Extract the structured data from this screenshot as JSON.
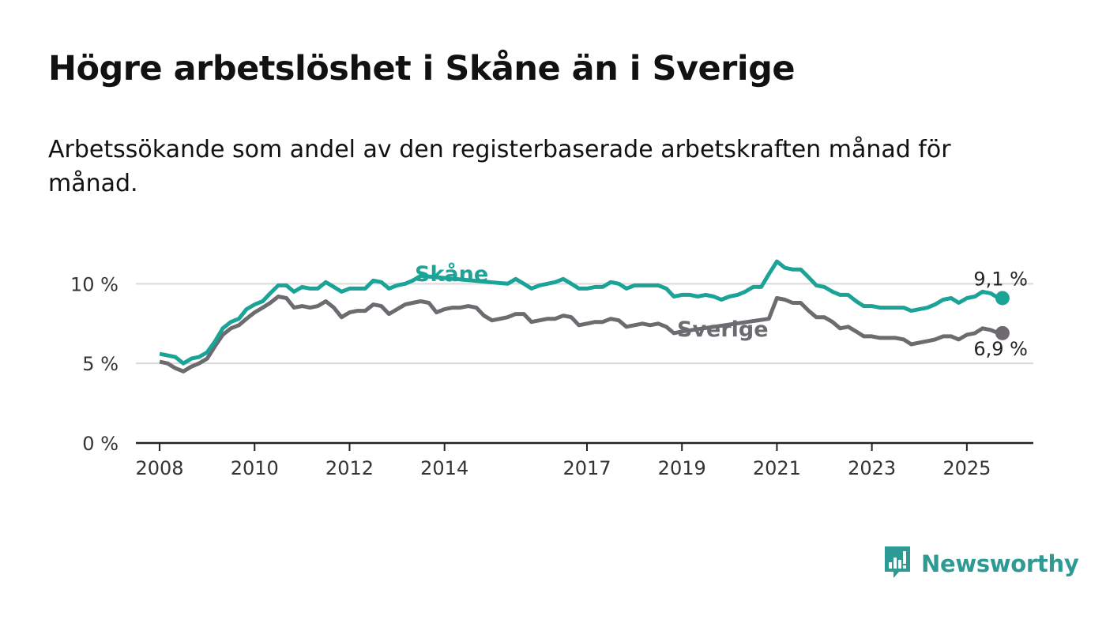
{
  "header": {
    "title": "Högre arbetslöshet i Skåne än i Sverige",
    "subtitle": "Arbetssökande som andel av den registerbaserade arbetskraften månad för månad."
  },
  "brand": {
    "name": "Newsworthy",
    "icon": "newsworthy-bar-chart-icon"
  },
  "colors": {
    "skane": "#1aa396",
    "sverige": "#6d6a70",
    "grid": "#d9d9d9",
    "axis": "#222222"
  },
  "chart_data": {
    "type": "line",
    "x_unit": "year",
    "xlim": [
      2007.5,
      2026.4
    ],
    "ylim": [
      0,
      12
    ],
    "y_ticks": [
      0,
      5,
      10
    ],
    "y_tick_labels": [
      "0 %",
      "5 %",
      "10 %"
    ],
    "x_ticks": [
      2008,
      2010,
      2012,
      2014,
      2017,
      2019,
      2021,
      2023,
      2025
    ],
    "x_tick_labels": [
      "2008",
      "2010",
      "2012",
      "2014",
      "2017",
      "2019",
      "2021",
      "2023",
      "2025"
    ],
    "grid": "horizontal",
    "series": [
      {
        "name": "Skåne",
        "end_label": "9,1 %",
        "points": [
          [
            2008.0,
            5.6
          ],
          [
            2008.33,
            5.4
          ],
          [
            2008.5,
            5.0
          ],
          [
            2008.67,
            5.3
          ],
          [
            2008.83,
            5.4
          ],
          [
            2009.0,
            5.7
          ],
          [
            2009.17,
            6.4
          ],
          [
            2009.33,
            7.2
          ],
          [
            2009.5,
            7.6
          ],
          [
            2009.67,
            7.8
          ],
          [
            2009.83,
            8.4
          ],
          [
            2010.0,
            8.7
          ],
          [
            2010.17,
            8.9
          ],
          [
            2010.33,
            9.4
          ],
          [
            2010.5,
            9.9
          ],
          [
            2010.67,
            9.9
          ],
          [
            2010.83,
            9.5
          ],
          [
            2011.0,
            9.8
          ],
          [
            2011.17,
            9.7
          ],
          [
            2011.33,
            9.7
          ],
          [
            2011.5,
            10.1
          ],
          [
            2011.67,
            9.8
          ],
          [
            2011.83,
            9.5
          ],
          [
            2012.0,
            9.7
          ],
          [
            2012.17,
            9.7
          ],
          [
            2012.33,
            9.7
          ],
          [
            2012.5,
            10.2
          ],
          [
            2012.67,
            10.1
          ],
          [
            2012.83,
            9.7
          ],
          [
            2013.0,
            9.9
          ],
          [
            2013.17,
            10.0
          ],
          [
            2013.33,
            10.2
          ],
          [
            2013.5,
            10.5
          ],
          [
            2015.33,
            10.0
          ],
          [
            2015.5,
            10.3
          ],
          [
            2015.67,
            10.0
          ],
          [
            2015.83,
            9.7
          ],
          [
            2016.0,
            9.9
          ],
          [
            2016.17,
            10.0
          ],
          [
            2016.33,
            10.1
          ],
          [
            2016.5,
            10.3
          ],
          [
            2016.67,
            10.0
          ],
          [
            2016.83,
            9.7
          ],
          [
            2017.0,
            9.7
          ],
          [
            2017.17,
            9.8
          ],
          [
            2017.33,
            9.8
          ],
          [
            2017.5,
            10.1
          ],
          [
            2017.67,
            10.0
          ],
          [
            2017.83,
            9.7
          ],
          [
            2018.0,
            9.9
          ],
          [
            2018.17,
            9.9
          ],
          [
            2018.33,
            9.9
          ],
          [
            2018.5,
            9.9
          ],
          [
            2018.67,
            9.7
          ],
          [
            2018.83,
            9.2
          ],
          [
            2019.0,
            9.3
          ],
          [
            2019.17,
            9.3
          ],
          [
            2019.33,
            9.2
          ],
          [
            2019.5,
            9.3
          ],
          [
            2019.67,
            9.2
          ],
          [
            2019.83,
            9.0
          ],
          [
            2020.0,
            9.2
          ],
          [
            2020.17,
            9.3
          ],
          [
            2020.33,
            9.5
          ],
          [
            2020.5,
            9.8
          ],
          [
            2020.67,
            9.8
          ],
          [
            2020.83,
            10.6
          ],
          [
            2021.0,
            11.4
          ],
          [
            2021.17,
            11.0
          ],
          [
            2021.33,
            10.9
          ],
          [
            2021.5,
            10.9
          ],
          [
            2021.67,
            10.4
          ],
          [
            2021.83,
            9.9
          ],
          [
            2022.0,
            9.8
          ],
          [
            2022.17,
            9.5
          ],
          [
            2022.33,
            9.3
          ],
          [
            2022.5,
            9.3
          ],
          [
            2022.67,
            8.9
          ],
          [
            2022.83,
            8.6
          ],
          [
            2023.0,
            8.6
          ],
          [
            2023.17,
            8.5
          ],
          [
            2023.33,
            8.5
          ],
          [
            2023.5,
            8.5
          ],
          [
            2023.67,
            8.5
          ],
          [
            2023.83,
            8.3
          ],
          [
            2024.0,
            8.4
          ],
          [
            2024.17,
            8.5
          ],
          [
            2024.33,
            8.7
          ],
          [
            2024.5,
            9.0
          ],
          [
            2024.67,
            9.1
          ],
          [
            2024.83,
            8.8
          ],
          [
            2025.0,
            9.1
          ],
          [
            2025.17,
            9.2
          ],
          [
            2025.33,
            9.5
          ],
          [
            2025.5,
            9.4
          ],
          [
            2025.67,
            9.1
          ],
          [
            2025.75,
            9.1
          ]
        ]
      },
      {
        "name": "Sverige",
        "end_label": "6,9 %",
        "points": [
          [
            2008.0,
            5.1
          ],
          [
            2008.17,
            5.0
          ],
          [
            2008.33,
            4.7
          ],
          [
            2008.5,
            4.5
          ],
          [
            2008.67,
            4.8
          ],
          [
            2008.83,
            5.0
          ],
          [
            2009.0,
            5.3
          ],
          [
            2009.17,
            6.1
          ],
          [
            2009.33,
            6.8
          ],
          [
            2009.5,
            7.2
          ],
          [
            2009.67,
            7.4
          ],
          [
            2009.83,
            7.8
          ],
          [
            2010.0,
            8.2
          ],
          [
            2010.17,
            8.5
          ],
          [
            2010.33,
            8.8
          ],
          [
            2010.5,
            9.2
          ],
          [
            2010.67,
            9.1
          ],
          [
            2010.83,
            8.5
          ],
          [
            2011.0,
            8.6
          ],
          [
            2011.17,
            8.5
          ],
          [
            2011.33,
            8.6
          ],
          [
            2011.5,
            8.9
          ],
          [
            2011.67,
            8.5
          ],
          [
            2011.83,
            7.9
          ],
          [
            2012.0,
            8.2
          ],
          [
            2012.17,
            8.3
          ],
          [
            2012.33,
            8.3
          ],
          [
            2012.5,
            8.7
          ],
          [
            2012.67,
            8.6
          ],
          [
            2012.83,
            8.1
          ],
          [
            2013.0,
            8.4
          ],
          [
            2013.17,
            8.7
          ],
          [
            2013.33,
            8.8
          ],
          [
            2013.5,
            8.9
          ],
          [
            2013.67,
            8.8
          ],
          [
            2013.83,
            8.2
          ],
          [
            2014.0,
            8.4
          ],
          [
            2014.17,
            8.5
          ],
          [
            2014.33,
            8.5
          ],
          [
            2014.5,
            8.6
          ],
          [
            2014.67,
            8.5
          ],
          [
            2014.83,
            8.0
          ],
          [
            2015.0,
            7.7
          ],
          [
            2015.17,
            7.8
          ],
          [
            2015.33,
            7.9
          ],
          [
            2015.5,
            8.1
          ],
          [
            2015.67,
            8.1
          ],
          [
            2015.83,
            7.6
          ],
          [
            2016.0,
            7.7
          ],
          [
            2016.17,
            7.8
          ],
          [
            2016.33,
            7.8
          ],
          [
            2016.5,
            8.0
          ],
          [
            2016.67,
            7.9
          ],
          [
            2016.83,
            7.4
          ],
          [
            2017.0,
            7.5
          ],
          [
            2017.17,
            7.6
          ],
          [
            2017.33,
            7.6
          ],
          [
            2017.5,
            7.8
          ],
          [
            2017.67,
            7.7
          ],
          [
            2017.83,
            7.3
          ],
          [
            2018.0,
            7.4
          ],
          [
            2018.17,
            7.5
          ],
          [
            2018.33,
            7.4
          ],
          [
            2018.5,
            7.5
          ],
          [
            2018.67,
            7.3
          ],
          [
            2018.83,
            6.9
          ],
          [
            2019.0,
            7.0
          ],
          [
            2020.83,
            7.8
          ],
          [
            2021.0,
            9.1
          ],
          [
            2021.17,
            9.0
          ],
          [
            2021.33,
            8.8
          ],
          [
            2021.5,
            8.8
          ],
          [
            2021.67,
            8.3
          ],
          [
            2021.83,
            7.9
          ],
          [
            2022.0,
            7.9
          ],
          [
            2022.17,
            7.6
          ],
          [
            2022.33,
            7.2
          ],
          [
            2022.5,
            7.3
          ],
          [
            2022.67,
            7.0
          ],
          [
            2022.83,
            6.7
          ],
          [
            2023.0,
            6.7
          ],
          [
            2023.17,
            6.6
          ],
          [
            2023.33,
            6.6
          ],
          [
            2023.5,
            6.6
          ],
          [
            2023.67,
            6.5
          ],
          [
            2023.83,
            6.2
          ],
          [
            2024.0,
            6.3
          ],
          [
            2024.17,
            6.4
          ],
          [
            2024.33,
            6.5
          ],
          [
            2024.5,
            6.7
          ],
          [
            2024.67,
            6.7
          ],
          [
            2024.83,
            6.5
          ],
          [
            2025.0,
            6.8
          ],
          [
            2025.17,
            6.9
          ],
          [
            2025.33,
            7.2
          ],
          [
            2025.5,
            7.1
          ],
          [
            2025.67,
            6.9
          ],
          [
            2025.75,
            6.9
          ]
        ]
      }
    ]
  }
}
